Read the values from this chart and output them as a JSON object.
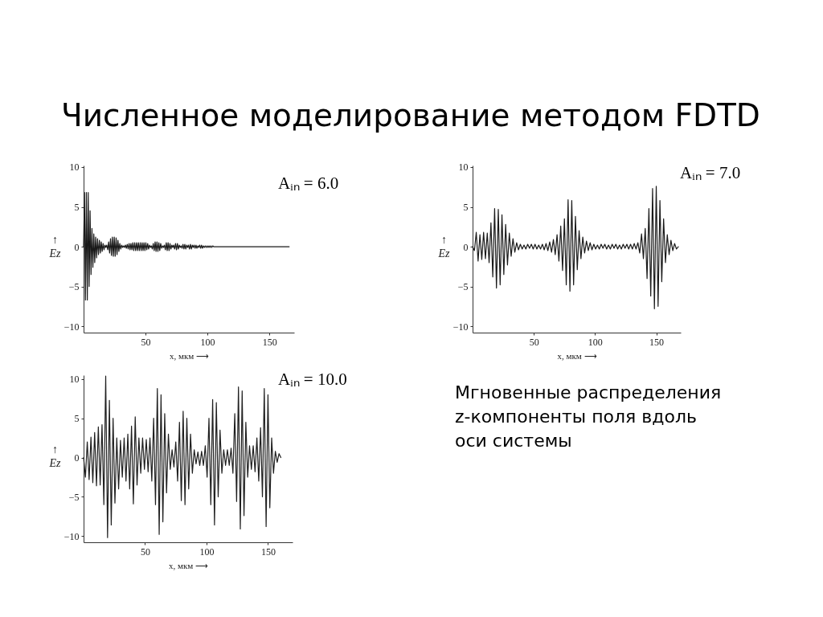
{
  "chart_data": [
    {
      "type": "other",
      "title": "Численное моделирование методом FDTD"
    },
    {
      "type": "line",
      "annotations": [
        "Aᵢₙ = 6.0"
      ],
      "xlabel": "x, мкм ⟶",
      "ylabel": "↑ Ez",
      "xlim": [
        0,
        170
      ],
      "ylim": [
        -10.8,
        10.2
      ],
      "xticks": [
        50,
        100,
        150
      ],
      "yticks": [
        -10,
        -5,
        0,
        5,
        10
      ],
      "x": [
        0,
        0.75,
        1.5,
        2.25,
        3,
        3.75,
        4.5,
        5.25,
        6,
        6.75,
        7.5,
        8.25,
        9,
        9.75,
        10.5,
        11.25,
        12,
        12.75,
        13.5,
        14.25,
        15,
        15.75,
        16.5,
        17.25,
        18,
        18.75,
        19.5,
        20.25,
        21,
        21.75,
        22.5,
        23.25,
        24,
        24.75,
        25.5,
        26.25,
        27,
        27.75,
        28.5,
        29.25,
        30,
        30.75,
        31.5,
        32.25,
        33,
        33.75,
        34.5,
        35.25,
        36,
        36.75,
        37.5,
        38.25,
        39,
        39.75,
        40.5,
        41.25,
        42,
        42.75,
        43.5,
        44.25,
        45,
        45.75,
        46.5,
        47.25,
        48,
        48.75,
        49.5,
        50.25,
        51,
        51.75,
        52.5,
        53.25,
        54,
        54.75,
        55.5,
        56.25,
        57,
        57.75,
        58.5,
        59.25,
        60,
        60.75,
        61.5,
        62.25,
        63,
        63.75,
        64.5,
        65.25,
        66,
        66.75,
        67.5,
        68.25,
        69,
        69.75,
        70.5,
        71.25,
        72,
        72.75,
        73.5,
        74.25,
        75,
        75.75,
        76.5,
        77.25,
        78,
        78.75,
        79.5,
        80.25,
        81,
        81.75,
        82.5,
        83.25,
        84,
        84.75,
        85.5,
        86.25,
        87,
        87.75,
        88.5,
        89.25,
        90,
        90.75,
        91.5,
        92.25,
        93,
        93.75,
        94.5,
        95.25,
        96,
        96.75,
        97.5,
        98.25,
        99,
        99.75,
        100.5,
        101.25,
        102,
        102.75,
        103.5,
        104.25,
        105,
        166
      ],
      "series": [
        {
          "color": "#1a1a1a",
          "values": [
            0,
            6.8,
            -6.7,
            6.8,
            -6.7,
            6.8,
            -5.0,
            4.5,
            -3.5,
            2.3,
            -2.6,
            1.6,
            -2.0,
            1.2,
            -1.4,
            1.0,
            -1.0,
            0.8,
            -0.8,
            0.6,
            -0.6,
            0.4,
            -0.4,
            0.2,
            -0.1,
            0.2,
            -0.4,
            0.6,
            -0.8,
            1.0,
            -1.1,
            1.2,
            -1.2,
            1.2,
            -1.2,
            1.1,
            -1.0,
            0.8,
            -0.6,
            0.4,
            -0.3,
            0.2,
            -0.1,
            0.1,
            -0.1,
            0.2,
            -0.2,
            0.3,
            -0.3,
            0.4,
            -0.4,
            0.4,
            -0.4,
            0.5,
            -0.5,
            0.5,
            -0.5,
            0.5,
            -0.5,
            0.5,
            -0.5,
            0.5,
            -0.5,
            0.5,
            -0.5,
            0.5,
            -0.5,
            0.5,
            -0.4,
            0.4,
            -0.3,
            0.2,
            -0.1,
            0.1,
            -0.3,
            0.4,
            -0.5,
            0.6,
            -0.6,
            0.6,
            -0.6,
            0.5,
            -0.5,
            0.4,
            -0.2,
            0.1,
            -0.1,
            0.2,
            -0.4,
            0.5,
            -0.5,
            0.5,
            -0.5,
            0.4,
            -0.3,
            0.2,
            -0.1,
            0.2,
            -0.3,
            0.4,
            -0.4,
            0.4,
            -0.3,
            0.2,
            -0.1,
            0.1,
            -0.2,
            0.3,
            -0.3,
            0.3,
            -0.3,
            0.2,
            -0.1,
            0.2,
            -0.3,
            0.3,
            -0.3,
            0.2,
            -0.1,
            0.2,
            -0.2,
            0.2,
            -0.2,
            0.1,
            -0.1,
            0.2,
            -0.2,
            0.2,
            -0.2,
            0.1,
            -0.1,
            0.1,
            -0.1,
            0.1,
            -0.1,
            0.1,
            -0.1,
            0.1,
            -0.1,
            0.1,
            0,
            0
          ]
        }
      ]
    },
    {
      "type": "line",
      "annotations": [
        "Aᵢₙ = 7.0"
      ],
      "xlabel": "x, мкм ⟶",
      "ylabel": "↑ Ez",
      "xlim": [
        0,
        170
      ],
      "ylim": [
        -10.8,
        10.2
      ],
      "xticks": [
        50,
        100,
        150
      ],
      "yticks": [
        -10,
        -5,
        0,
        5,
        10
      ],
      "x": [
        0,
        1.5,
        3,
        4.5,
        6,
        7.5,
        9,
        10.5,
        12,
        13.5,
        15,
        16.5,
        18,
        19.5,
        21,
        22.5,
        24,
        25.5,
        27,
        28.5,
        30,
        31.5,
        33,
        34.5,
        36,
        37.5,
        39,
        40.5,
        42,
        43.5,
        45,
        46.5,
        48,
        49.5,
        51,
        52.5,
        54,
        55.5,
        57,
        58.5,
        60,
        61.5,
        63,
        64.5,
        66,
        67.5,
        69,
        70.5,
        72,
        73.5,
        75,
        76.5,
        78,
        79.5,
        81,
        82.5,
        84,
        85.5,
        87,
        88.5,
        90,
        91.5,
        93,
        94.5,
        96,
        97.5,
        99,
        100.5,
        102,
        103.5,
        105,
        106.5,
        108,
        109.5,
        111,
        112.5,
        114,
        115.5,
        117,
        118.5,
        120,
        121.5,
        123,
        124.5,
        126,
        127.5,
        129,
        130.5,
        132,
        133.5,
        135,
        136.5,
        138,
        139.5,
        141,
        142.5,
        144,
        145.5,
        147,
        148.5,
        150,
        151.5,
        153,
        154.5,
        156,
        157.5,
        159,
        160.5,
        162,
        163.5,
        165,
        166.5,
        168
      ],
      "series": [
        {
          "color": "#1a1a1a",
          "values": [
            0,
            -0.5,
            1.8,
            -1.8,
            1.5,
            -1.6,
            1.8,
            -1.5,
            1.7,
            -2.0,
            3.0,
            -3.8,
            4.8,
            -5.2,
            4.7,
            -4.8,
            4.0,
            -3.5,
            2.8,
            -2.3,
            1.7,
            -1.2,
            1.0,
            -0.7,
            0.5,
            -0.4,
            0.3,
            -0.3,
            0.2,
            -0.3,
            0.3,
            -0.2,
            0.3,
            -0.3,
            0.3,
            -0.3,
            0.2,
            -0.3,
            0.3,
            -0.4,
            0.4,
            -0.5,
            0.6,
            -0.7,
            0.9,
            -1.0,
            1.5,
            -1.8,
            2.6,
            -3.0,
            3.5,
            -4.8,
            5.9,
            -5.6,
            5.8,
            -4.8,
            3.8,
            -2.9,
            2.0,
            -1.5,
            1.2,
            -0.8,
            0.7,
            -0.5,
            0.5,
            -0.4,
            0.3,
            -0.3,
            0.2,
            -0.3,
            0.3,
            -0.2,
            0.3,
            -0.3,
            0.2,
            -0.3,
            0.3,
            -0.2,
            0.3,
            -0.3,
            0.2,
            -0.3,
            0.3,
            -0.2,
            0.3,
            -0.3,
            0.3,
            -0.3,
            0.4,
            -0.3,
            0.5,
            -0.8,
            1.6,
            -1.5,
            2.3,
            -4.0,
            4.8,
            -6.2,
            7.3,
            -7.8,
            7.6,
            -7.5,
            5.8,
            -4.4,
            3.5,
            -2.0,
            1.5,
            -1.0,
            0.8,
            -0.5,
            0.4,
            -0.3,
            0
          ]
        }
      ]
    },
    {
      "type": "line",
      "annotations": [
        "Aᵢₙ = 10.0"
      ],
      "xlabel": "x, мкм ⟶",
      "ylabel": "↑ Ez",
      "xlim": [
        0,
        170
      ],
      "ylim": [
        -10.8,
        10.5
      ],
      "xticks": [
        50,
        100,
        150
      ],
      "yticks": [
        -10,
        -5,
        0,
        5,
        10
      ],
      "x": [
        0,
        1.5,
        3,
        4.5,
        6,
        7.5,
        9,
        10.5,
        12,
        13.5,
        15,
        16.5,
        18,
        19.5,
        21,
        22.5,
        24,
        25.5,
        27,
        28.5,
        30,
        31.5,
        33,
        34.5,
        36,
        37.5,
        39,
        40.5,
        42,
        43.5,
        45,
        46.5,
        48,
        49.5,
        51,
        52.5,
        54,
        55.5,
        57,
        58.5,
        60,
        61.5,
        63,
        64.5,
        66,
        67.5,
        69,
        70.5,
        72,
        73.5,
        75,
        76.5,
        78,
        79.5,
        81,
        82.5,
        84,
        85.5,
        87,
        88.5,
        90,
        91.5,
        93,
        94.5,
        96,
        97.5,
        99,
        100.5,
        102,
        103.5,
        105,
        106.5,
        108,
        109.5,
        111,
        112.5,
        114,
        115.5,
        117,
        118.5,
        120,
        121.5,
        123,
        124.5,
        126,
        127.5,
        129,
        130.5,
        132,
        133.5,
        135,
        136.5,
        138,
        139.5,
        141,
        142.5,
        144,
        145.5,
        147,
        148.5,
        150,
        151.5,
        153,
        154.5,
        156,
        157.5,
        159,
        160.5
      ],
      "series": [
        {
          "color": "#1f1f1f",
          "values": [
            0,
            -2.5,
            2.0,
            -2.8,
            2.6,
            -3.2,
            3.2,
            -3.6,
            3.9,
            -3.5,
            4.2,
            -6.0,
            10.4,
            -10.2,
            7.3,
            -8.6,
            5.0,
            -5.8,
            2.5,
            -4.0,
            2.2,
            -2.5,
            2.5,
            -3.0,
            3.0,
            -4.0,
            4.0,
            -5.9,
            5.2,
            -3.5,
            2.5,
            -2.0,
            2.5,
            -1.5,
            2.3,
            -1.8,
            2.5,
            -3.0,
            5.0,
            -6.0,
            8.8,
            -9.8,
            8.0,
            -8.2,
            5.6,
            -4.5,
            3.0,
            -1.5,
            1.0,
            -1.2,
            2.0,
            -3.0,
            4.5,
            -5.5,
            5.9,
            -6.0,
            5.0,
            -4.0,
            3.0,
            -2.0,
            1.0,
            -0.8,
            0.7,
            -1.0,
            0.8,
            -1.0,
            1.5,
            -2.5,
            5.0,
            -6.0,
            7.4,
            -8.6,
            7.0,
            -5.0,
            3.5,
            -2.0,
            1.0,
            -1.0,
            1.0,
            -1.0,
            1.2,
            -2.0,
            5.6,
            -5.6,
            9.0,
            -9.1,
            8.5,
            -7.4,
            4.5,
            -2.5,
            1.5,
            -1.5,
            1.5,
            -1.8,
            2.5,
            -3.0,
            3.8,
            -5.0,
            8.8,
            -8.8,
            8.0,
            -6.4,
            2.5,
            -2.0,
            0.8,
            -0.6,
            0.5,
            0
          ]
        }
      ]
    },
    {
      "type": "other",
      "annotations": [
        "Мгновенные распределения z-компоненты поля вдоль оси системы"
      ]
    }
  ]
}
